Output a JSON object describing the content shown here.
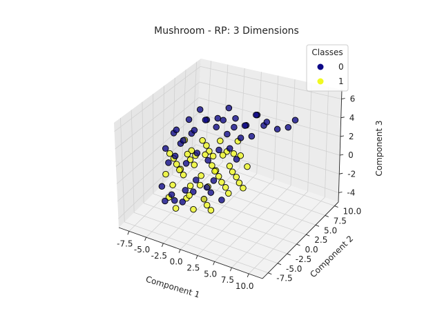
{
  "chart_data": {
    "type": "scatter",
    "projection": "3d",
    "title": "Mushroom - RP: 3 Dimensions",
    "xlabel": "Component 1",
    "ylabel": "Component 2",
    "zlabel": "Component 3",
    "xlim": [
      -9,
      12
    ],
    "ylim": [
      -9,
      11
    ],
    "zlim": [
      -5,
      7
    ],
    "x_ticks": [
      "-7.5",
      "-5.0",
      "-2.5",
      "0.0",
      "2.5",
      "5.0",
      "7.5",
      "10.0"
    ],
    "y_ticks": [
      "-7.5",
      "-5.0",
      "-2.5",
      "0.0",
      "2.5",
      "5.0",
      "7.5",
      "10.0"
    ],
    "z_ticks": [
      "-4",
      "-2",
      "0",
      "2",
      "4",
      "6"
    ],
    "grid": true,
    "legend": {
      "title": "Classes",
      "placement": "top-right",
      "entries": [
        {
          "label": "0",
          "color": "#0d0887"
        },
        {
          "label": "1",
          "color": "#f0f921"
        }
      ]
    },
    "series": [
      {
        "name": "0",
        "color": "#0d0887",
        "points": [
          [
            -6,
            0,
            3
          ],
          [
            -5,
            -1,
            4
          ],
          [
            -4,
            -1,
            3
          ],
          [
            -3,
            0,
            4
          ],
          [
            -2,
            1,
            5
          ],
          [
            -1,
            2,
            4
          ],
          [
            0,
            2,
            5
          ],
          [
            1,
            3,
            4
          ],
          [
            2,
            4,
            4
          ],
          [
            3,
            5,
            5
          ],
          [
            4,
            6,
            4
          ],
          [
            5,
            7,
            3
          ],
          [
            6,
            8,
            3
          ],
          [
            7,
            8,
            4
          ],
          [
            -5,
            2,
            4
          ],
          [
            -4,
            3,
            5
          ],
          [
            -3,
            3,
            4
          ],
          [
            -2,
            4,
            4
          ],
          [
            -1,
            5,
            5
          ],
          [
            0,
            5,
            4
          ],
          [
            1,
            6,
            3
          ],
          [
            2,
            7,
            4
          ],
          [
            3,
            7,
            3
          ],
          [
            -6,
            -2,
            2
          ],
          [
            -5,
            -3,
            1
          ],
          [
            -4,
            -3,
            2
          ],
          [
            -3,
            -2,
            1
          ],
          [
            -2,
            -1,
            2
          ],
          [
            -1,
            0,
            1
          ],
          [
            0,
            1,
            2
          ],
          [
            1,
            2,
            2
          ],
          [
            2,
            2,
            1
          ],
          [
            -6,
            -3,
            -2
          ],
          [
            -5,
            -4,
            -3
          ],
          [
            -4,
            -4,
            -2
          ],
          [
            -3,
            -3,
            -3
          ],
          [
            -2,
            -2,
            -2
          ],
          [
            -1,
            -1,
            -3
          ],
          [
            0,
            -1,
            -2
          ],
          [
            1,
            0,
            -3
          ],
          [
            -2,
            -4,
            -1
          ],
          [
            -1,
            -3,
            0
          ],
          [
            0,
            -2,
            -1
          ],
          [
            1,
            -2,
            0
          ],
          [
            -3,
            -5,
            -2
          ],
          [
            2,
            3,
            3
          ],
          [
            3,
            4,
            3
          ],
          [
            -4,
            1,
            3
          ],
          [
            -5,
            0,
            2
          ],
          [
            0,
            3,
            3
          ]
        ]
      },
      {
        "name": "1",
        "color": "#f0f921",
        "points": [
          [
            -6,
            -1,
            1
          ],
          [
            -5,
            -1,
            0
          ],
          [
            -4,
            0,
            1
          ],
          [
            -3,
            0,
            0
          ],
          [
            -2,
            1,
            1
          ],
          [
            -1,
            1,
            0
          ],
          [
            0,
            2,
            1
          ],
          [
            1,
            2,
            0
          ],
          [
            2,
            3,
            1
          ],
          [
            3,
            3,
            0
          ],
          [
            -6,
            -2,
            -1
          ],
          [
            -5,
            -2,
            -2
          ],
          [
            -4,
            -1,
            -1
          ],
          [
            -3,
            -1,
            -2
          ],
          [
            -2,
            0,
            -1
          ],
          [
            -1,
            0,
            -2
          ],
          [
            0,
            1,
            -1
          ],
          [
            1,
            1,
            -2
          ],
          [
            2,
            2,
            -1
          ],
          [
            3,
            2,
            -2
          ],
          [
            -5,
            1,
            2
          ],
          [
            -4,
            1,
            1
          ],
          [
            -3,
            2,
            2
          ],
          [
            -2,
            2,
            1
          ],
          [
            -1,
            3,
            2
          ],
          [
            0,
            3,
            1
          ],
          [
            1,
            4,
            2
          ],
          [
            -5,
            -3,
            -3
          ],
          [
            -4,
            -3,
            -4
          ],
          [
            -3,
            -2,
            -3
          ],
          [
            -2,
            -2,
            -4
          ],
          [
            -1,
            -1,
            -3
          ],
          [
            0,
            -1,
            -4
          ],
          [
            -6,
            0,
            0
          ],
          [
            -5,
            0,
            -1
          ],
          [
            -4,
            2,
            0
          ],
          [
            -3,
            3,
            1
          ],
          [
            -2,
            3,
            0
          ],
          [
            -1,
            2,
            -1
          ],
          [
            0,
            0,
            0
          ],
          [
            1,
            3,
            1
          ],
          [
            2,
            1,
            0
          ],
          [
            -4,
            -2,
            0
          ],
          [
            -3,
            -1,
            1
          ],
          [
            -2,
            -3,
            -2
          ],
          [
            -1,
            -2,
            -1
          ],
          [
            0,
            -2,
            -3
          ],
          [
            1,
            0,
            -1
          ],
          [
            2,
            0,
            -2
          ],
          [
            3,
            1,
            -1
          ]
        ]
      }
    ]
  }
}
